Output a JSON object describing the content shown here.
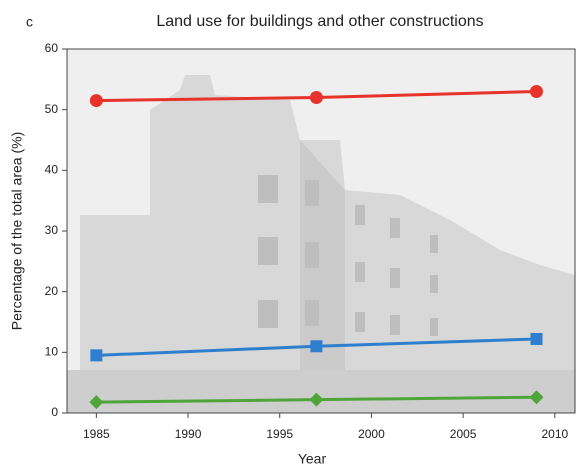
{
  "chart_data": {
    "type": "line",
    "panel_label": "c",
    "title": "Land use for buildings and other constructions",
    "x_label": "Year",
    "y_label": "Percentage of the total area (%)",
    "x": [
      1985,
      1997,
      2009
    ],
    "series": [
      {
        "color": "#e8332a",
        "marker": "circle",
        "values": [
          51.5,
          52,
          53
        ]
      },
      {
        "color": "#2f7fd0",
        "marker": "square",
        "values": [
          9.5,
          11,
          12.2
        ]
      },
      {
        "color": "#4fa53a",
        "marker": "diamond",
        "values": [
          1.8,
          2.2,
          2.6
        ]
      }
    ],
    "xlim": [
      1983.4,
      2011.1
    ],
    "xticks": [
      1985,
      1990,
      1995,
      2000,
      2005,
      2010
    ],
    "ylim": [
      0,
      60
    ],
    "yticks": [
      0,
      10,
      20,
      30,
      40,
      50,
      60
    ]
  }
}
